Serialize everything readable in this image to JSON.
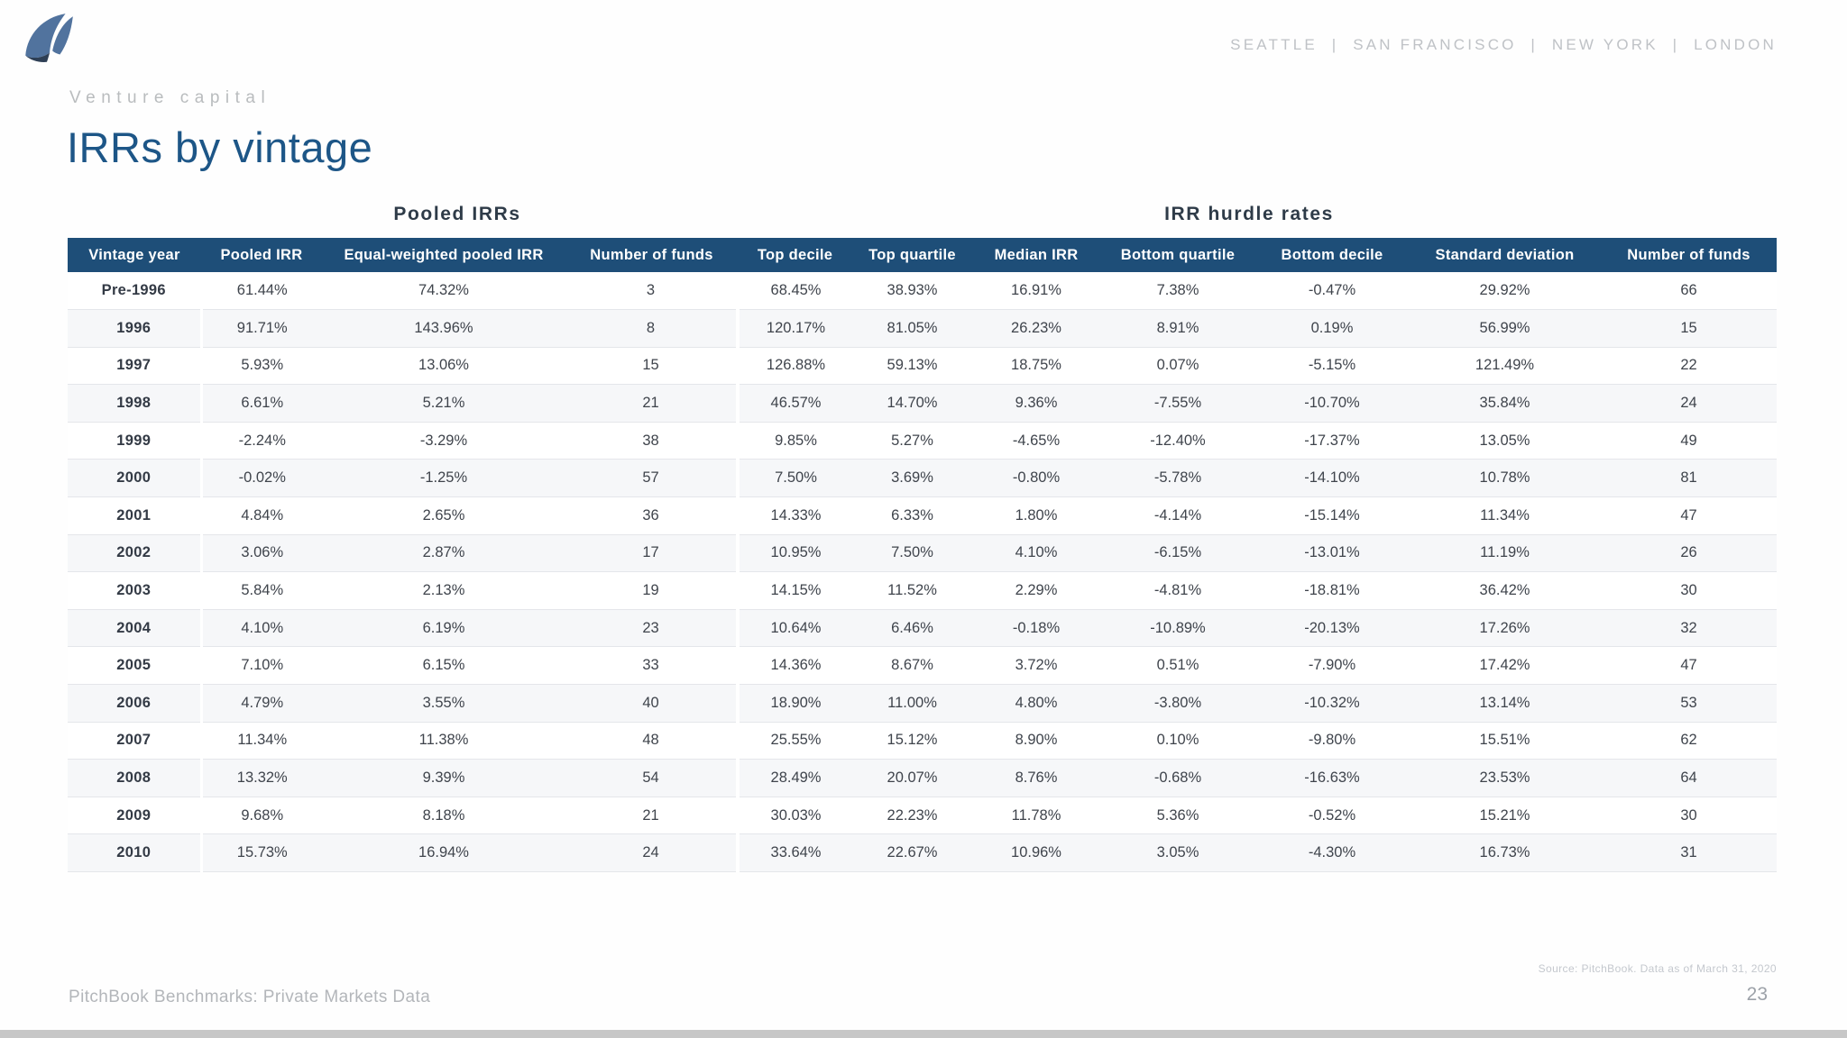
{
  "brand": {
    "logo_name": "pitchbook-sails-logo",
    "cities": [
      "SEATTLE",
      "SAN FRANCISCO",
      "NEW YORK",
      "LONDON"
    ]
  },
  "header": {
    "eyebrow": "Venture capital",
    "title": "IRRs by vintage"
  },
  "table": {
    "group_headers": {
      "pooled": "Pooled IRRs",
      "hurdle": "IRR hurdle rates"
    },
    "columns": [
      "Vintage year",
      "Pooled IRR",
      "Equal-weighted pooled IRR",
      "Number of funds",
      "Top decile",
      "Top quartile",
      "Median IRR",
      "Bottom quartile",
      "Bottom decile",
      "Standard deviation",
      "Number of funds"
    ],
    "rows": [
      [
        "Pre-1996",
        "61.44%",
        "74.32%",
        "3",
        "68.45%",
        "38.93%",
        "16.91%",
        "7.38%",
        "-0.47%",
        "29.92%",
        "66"
      ],
      [
        "1996",
        "91.71%",
        "143.96%",
        "8",
        "120.17%",
        "81.05%",
        "26.23%",
        "8.91%",
        "0.19%",
        "56.99%",
        "15"
      ],
      [
        "1997",
        "5.93%",
        "13.06%",
        "15",
        "126.88%",
        "59.13%",
        "18.75%",
        "0.07%",
        "-5.15%",
        "121.49%",
        "22"
      ],
      [
        "1998",
        "6.61%",
        "5.21%",
        "21",
        "46.57%",
        "14.70%",
        "9.36%",
        "-7.55%",
        "-10.70%",
        "35.84%",
        "24"
      ],
      [
        "1999",
        "-2.24%",
        "-3.29%",
        "38",
        "9.85%",
        "5.27%",
        "-4.65%",
        "-12.40%",
        "-17.37%",
        "13.05%",
        "49"
      ],
      [
        "2000",
        "-0.02%",
        "-1.25%",
        "57",
        "7.50%",
        "3.69%",
        "-0.80%",
        "-5.78%",
        "-14.10%",
        "10.78%",
        "81"
      ],
      [
        "2001",
        "4.84%",
        "2.65%",
        "36",
        "14.33%",
        "6.33%",
        "1.80%",
        "-4.14%",
        "-15.14%",
        "11.34%",
        "47"
      ],
      [
        "2002",
        "3.06%",
        "2.87%",
        "17",
        "10.95%",
        "7.50%",
        "4.10%",
        "-6.15%",
        "-13.01%",
        "11.19%",
        "26"
      ],
      [
        "2003",
        "5.84%",
        "2.13%",
        "19",
        "14.15%",
        "11.52%",
        "2.29%",
        "-4.81%",
        "-18.81%",
        "36.42%",
        "30"
      ],
      [
        "2004",
        "4.10%",
        "6.19%",
        "23",
        "10.64%",
        "6.46%",
        "-0.18%",
        "-10.89%",
        "-20.13%",
        "17.26%",
        "32"
      ],
      [
        "2005",
        "7.10%",
        "6.15%",
        "33",
        "14.36%",
        "8.67%",
        "3.72%",
        "0.51%",
        "-7.90%",
        "17.42%",
        "47"
      ],
      [
        "2006",
        "4.79%",
        "3.55%",
        "40",
        "18.90%",
        "11.00%",
        "4.80%",
        "-3.80%",
        "-10.32%",
        "13.14%",
        "53"
      ],
      [
        "2007",
        "11.34%",
        "11.38%",
        "48",
        "25.55%",
        "15.12%",
        "8.90%",
        "0.10%",
        "-9.80%",
        "15.51%",
        "62"
      ],
      [
        "2008",
        "13.32%",
        "9.39%",
        "54",
        "28.49%",
        "20.07%",
        "8.76%",
        "-0.68%",
        "-16.63%",
        "23.53%",
        "64"
      ],
      [
        "2009",
        "9.68%",
        "8.18%",
        "21",
        "30.03%",
        "22.23%",
        "11.78%",
        "5.36%",
        "-0.52%",
        "15.21%",
        "30"
      ],
      [
        "2010",
        "15.73%",
        "16.94%",
        "24",
        "33.64%",
        "22.67%",
        "10.96%",
        "3.05%",
        "-4.30%",
        "16.73%",
        "31"
      ]
    ]
  },
  "footer": {
    "source": "Source: PitchBook. Data as of March 31, 2020",
    "label": "PitchBook Benchmarks: Private Markets Data",
    "page": "23"
  },
  "colors": {
    "header_bar": "#1e4e78",
    "title_blue": "#1d5687",
    "stripe": "#f6f7f9",
    "logo_blue": "#51739e",
    "logo_dark": "#2e3f55"
  }
}
